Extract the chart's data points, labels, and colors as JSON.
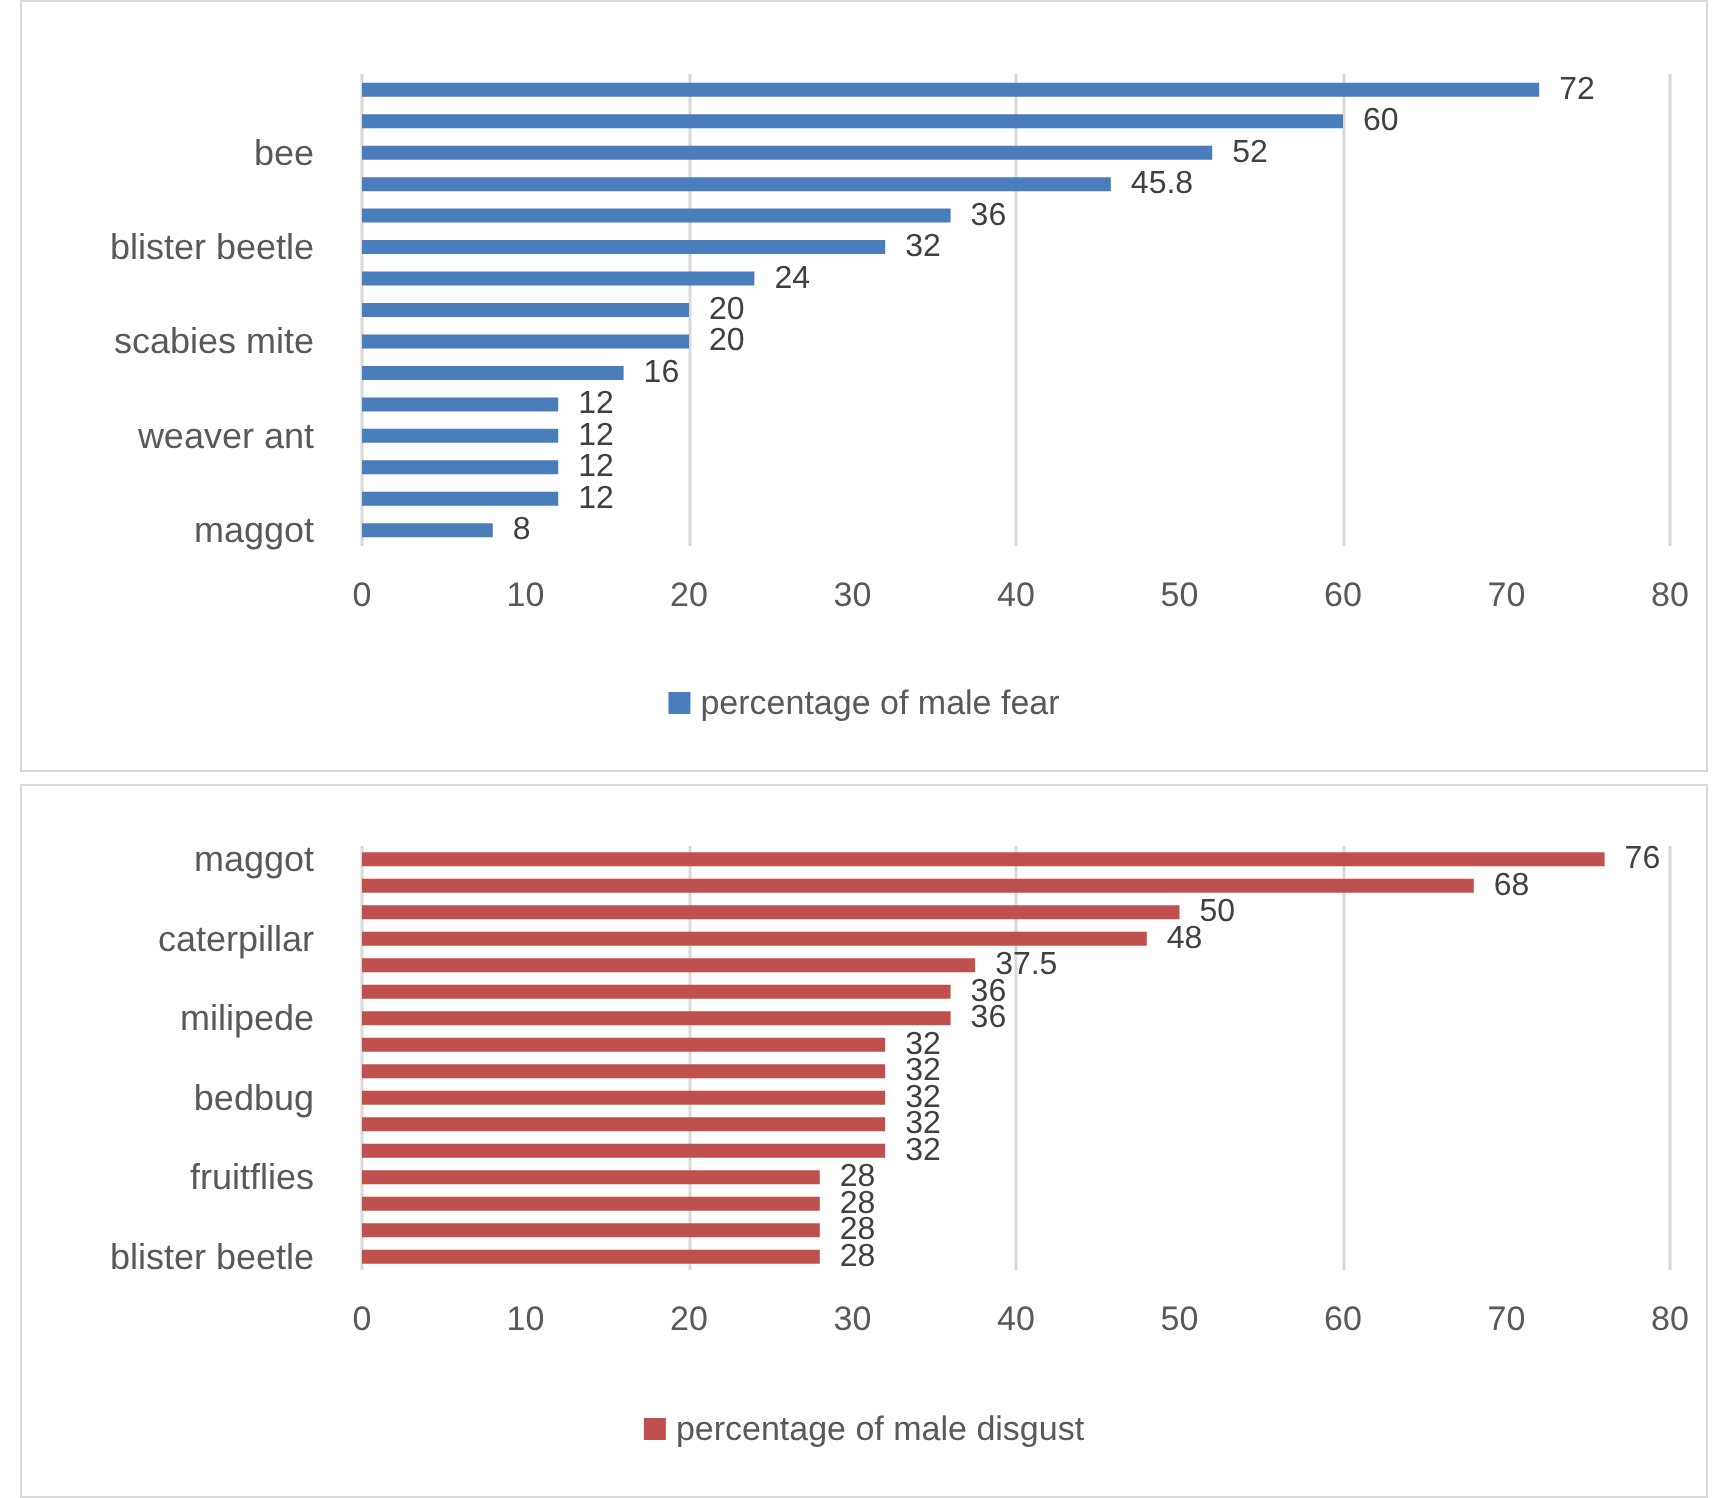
{
  "chart_data": [
    {
      "type": "bar",
      "orientation": "horizontal",
      "categories": [
        null,
        null,
        "bee",
        null,
        null,
        "blister beetle",
        null,
        null,
        "scabies mite",
        null,
        null,
        "weaver ant",
        null,
        null,
        "maggot"
      ],
      "series": [
        {
          "name": "percentage of male fear",
          "color": "#4a7ebb",
          "values": [
            72,
            60,
            52,
            45.8,
            36,
            32,
            24,
            20,
            20,
            16,
            12,
            12,
            12,
            12,
            8
          ]
        }
      ],
      "xlim": [
        0,
        80
      ],
      "xticks": [
        0,
        10,
        20,
        30,
        40,
        50,
        60,
        70,
        80
      ],
      "grid": "x",
      "legend": "bottom",
      "data_labels": true
    },
    {
      "type": "bar",
      "orientation": "horizontal",
      "categories": [
        "maggot",
        null,
        null,
        "caterpillar",
        null,
        null,
        "milipede",
        null,
        null,
        "bedbug",
        null,
        null,
        "fruitflies",
        null,
        null,
        "blister beetle"
      ],
      "series": [
        {
          "name": "percentage of male disgust",
          "color": "#c0504d",
          "values": [
            76,
            68,
            50,
            48,
            37.5,
            36,
            36,
            32,
            32,
            32,
            32,
            32,
            28,
            28,
            28,
            28
          ]
        }
      ],
      "xlim": [
        0,
        80
      ],
      "xticks": [
        0,
        10,
        20,
        30,
        40,
        50,
        60,
        70,
        80
      ],
      "grid": "x",
      "legend": "bottom",
      "data_labels": true
    }
  ]
}
